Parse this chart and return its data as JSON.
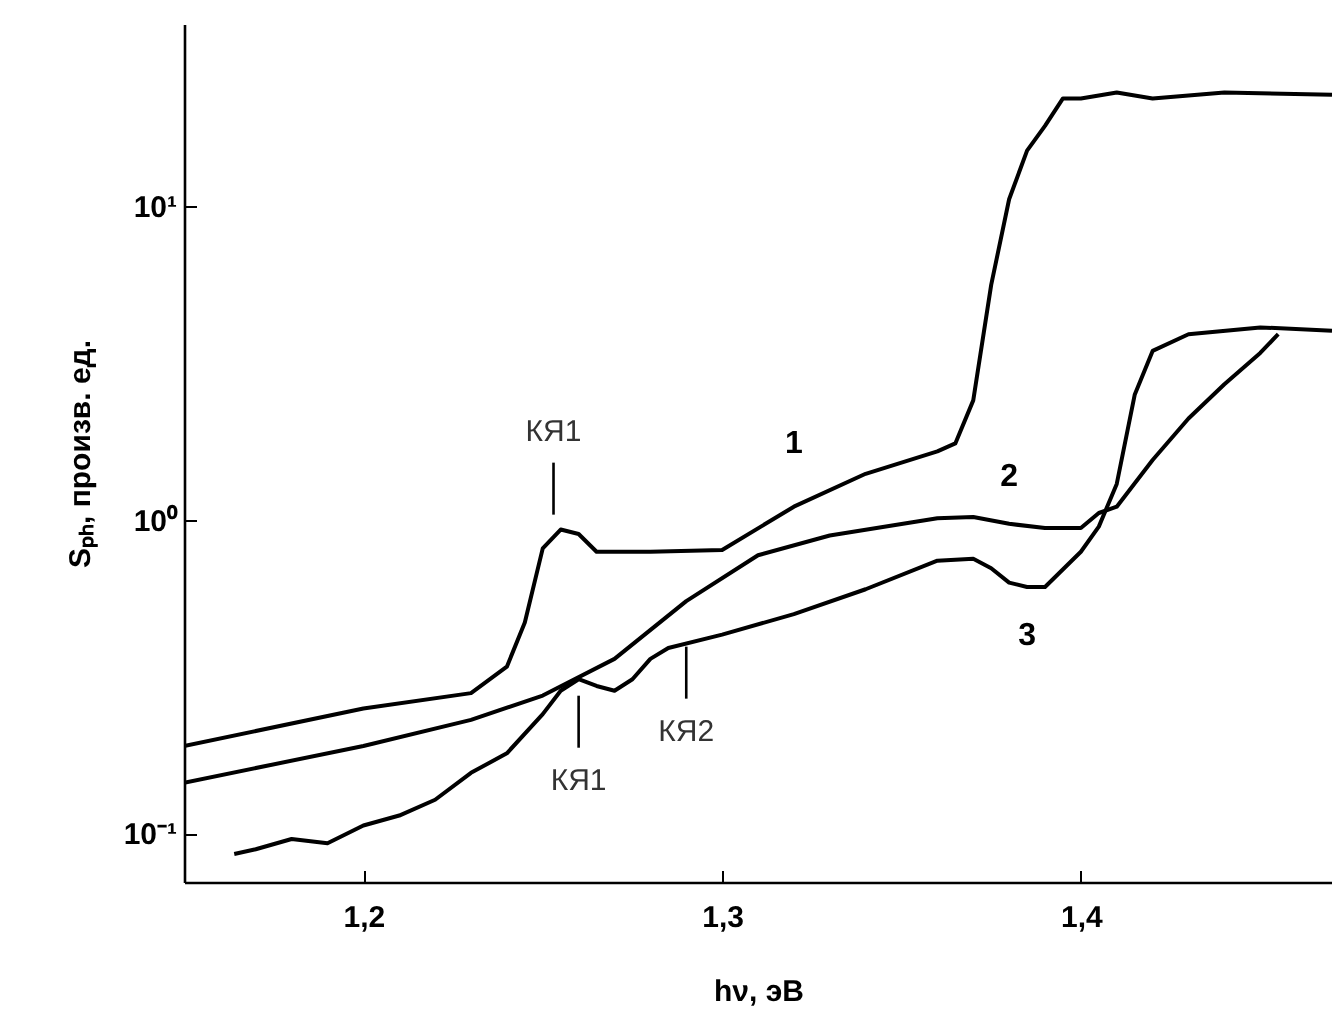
{
  "chart_data": {
    "type": "line",
    "xlabel": "hν, эВ",
    "ylabel": "Sₚₕ, произв. ед.",
    "log": "y",
    "xlim": [
      1.15,
      1.47
    ],
    "xticks": [
      {
        "value": 1.2,
        "label": "1,2"
      },
      {
        "value": 1.3,
        "label": "1,3"
      },
      {
        "value": 1.4,
        "label": "1,4"
      }
    ],
    "ylim": [
      0.07,
      38
    ],
    "yticks": [
      {
        "value": 0.1,
        "label": "10⁻¹"
      },
      {
        "value": 1,
        "label": "10⁰"
      },
      {
        "value": 10,
        "label": "10¹"
      }
    ],
    "series": [
      {
        "name": "1",
        "color": "#000000",
        "x": [
          1.15,
          1.2,
          1.23,
          1.24,
          1.245,
          1.25,
          1.255,
          1.26,
          1.265,
          1.28,
          1.3,
          1.32,
          1.34,
          1.36,
          1.365,
          1.37,
          1.375,
          1.38,
          1.385,
          1.39,
          1.395,
          1.4,
          1.41,
          1.42,
          1.44,
          1.47
        ],
        "values": [
          0.19,
          0.25,
          0.28,
          0.34,
          0.47,
          0.81,
          0.93,
          0.9,
          0.79,
          0.79,
          0.8,
          1.1,
          1.4,
          1.65,
          1.75,
          2.4,
          5.6,
          10.5,
          15,
          18,
          22,
          22,
          23,
          22,
          23,
          22.6
        ]
      },
      {
        "name": "2",
        "color": "#000000",
        "x": [
          1.15,
          1.2,
          1.23,
          1.25,
          1.27,
          1.29,
          1.31,
          1.33,
          1.36,
          1.37,
          1.38,
          1.39,
          1.4,
          1.405,
          1.41,
          1.42,
          1.43,
          1.44,
          1.45,
          1.455
        ],
        "values": [
          0.145,
          0.19,
          0.23,
          0.275,
          0.36,
          0.55,
          0.77,
          0.89,
          1.01,
          1.02,
          0.97,
          0.94,
          0.94,
          1.05,
          1.1,
          1.55,
          2.1,
          2.7,
          3.4,
          3.9
        ]
      },
      {
        "name": "3",
        "color": "#000000",
        "x": [
          1.164,
          1.17,
          1.18,
          1.19,
          1.2,
          1.21,
          1.22,
          1.23,
          1.24,
          1.25,
          1.255,
          1.26,
          1.265,
          1.27,
          1.275,
          1.28,
          1.285,
          1.3,
          1.32,
          1.34,
          1.36,
          1.37,
          1.375,
          1.38,
          1.385,
          1.39,
          1.4,
          1.405,
          1.41,
          1.415,
          1.42,
          1.43,
          1.45,
          1.47
        ],
        "values": [
          0.086,
          0.089,
          0.096,
          0.093,
          0.106,
          0.114,
          0.128,
          0.156,
          0.18,
          0.24,
          0.285,
          0.31,
          0.295,
          0.285,
          0.31,
          0.36,
          0.39,
          0.43,
          0.5,
          0.6,
          0.74,
          0.75,
          0.7,
          0.63,
          0.61,
          0.61,
          0.79,
          0.95,
          1.3,
          2.5,
          3.45,
          3.9,
          4.1,
          4.0
        ]
      }
    ],
    "annotations": [
      {
        "text": "КЯ1",
        "x": 1.253,
        "y": 0.95
      },
      {
        "text": "КЯ1",
        "x": 1.26,
        "y": 0.3
      },
      {
        "text": "КЯ2",
        "x": 1.29,
        "y": 0.43
      }
    ]
  }
}
